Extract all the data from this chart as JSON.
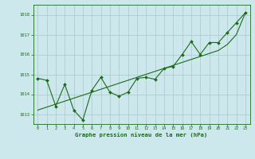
{
  "x": [
    0,
    1,
    2,
    3,
    4,
    5,
    6,
    7,
    8,
    9,
    10,
    11,
    12,
    13,
    14,
    15,
    16,
    17,
    18,
    19,
    20,
    21,
    22,
    23
  ],
  "y_pressure": [
    1014.8,
    1014.7,
    1013.4,
    1014.5,
    1013.2,
    1012.7,
    1014.2,
    1014.85,
    1014.1,
    1013.9,
    1014.1,
    1014.8,
    1014.85,
    1014.75,
    1015.3,
    1015.4,
    1016.0,
    1016.65,
    1016.0,
    1016.6,
    1016.6,
    1017.1,
    1017.6,
    1018.1
  ],
  "y_trend": [
    1013.2,
    1013.35,
    1013.5,
    1013.65,
    1013.8,
    1013.95,
    1014.1,
    1014.25,
    1014.4,
    1014.55,
    1014.7,
    1014.85,
    1015.0,
    1015.15,
    1015.3,
    1015.45,
    1015.6,
    1015.75,
    1015.9,
    1016.05,
    1016.2,
    1016.5,
    1017.0,
    1018.1
  ],
  "line_color": "#1a6b1a",
  "bg_color": "#cce8ec",
  "grid_color": "#aac8cc",
  "xlabel": "Graphe pression niveau de la mer (hPa)",
  "ylim": [
    1012.5,
    1018.5
  ],
  "yticks": [
    1013,
    1014,
    1015,
    1016,
    1017,
    1018
  ],
  "xlim": [
    -0.5,
    23.5
  ],
  "xticks": [
    0,
    1,
    2,
    3,
    4,
    5,
    6,
    7,
    8,
    9,
    10,
    11,
    12,
    13,
    14,
    15,
    16,
    17,
    18,
    19,
    20,
    21,
    22,
    23
  ]
}
